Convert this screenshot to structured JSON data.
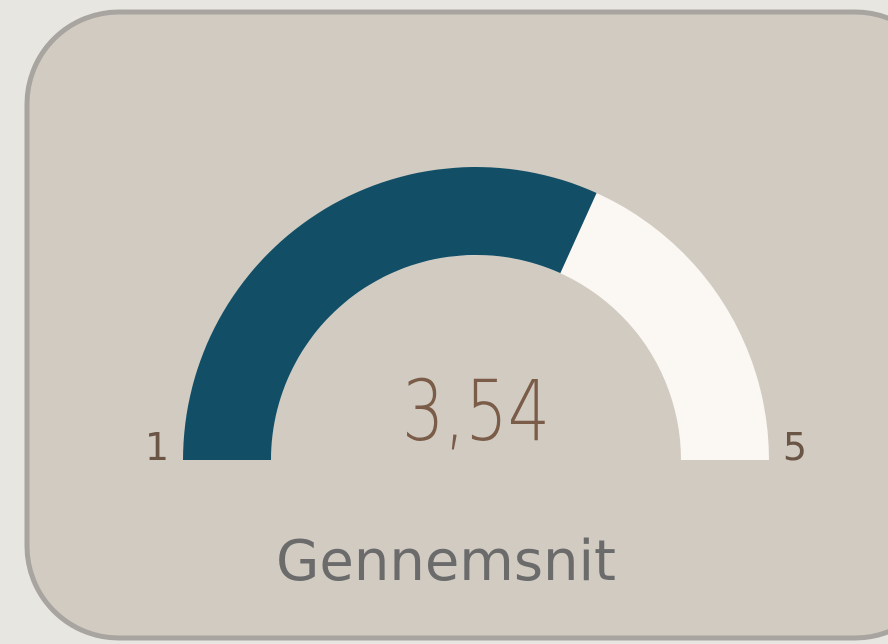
{
  "chart_data": {
    "type": "gauge",
    "title": "Gennemsnit",
    "values": [
      3.54
    ],
    "value_labels": [
      "3,54"
    ],
    "ylim": [
      1,
      5
    ],
    "yticks": [
      1,
      5
    ],
    "color": "#124e66",
    "track_color": "#fbf7f2"
  }
}
